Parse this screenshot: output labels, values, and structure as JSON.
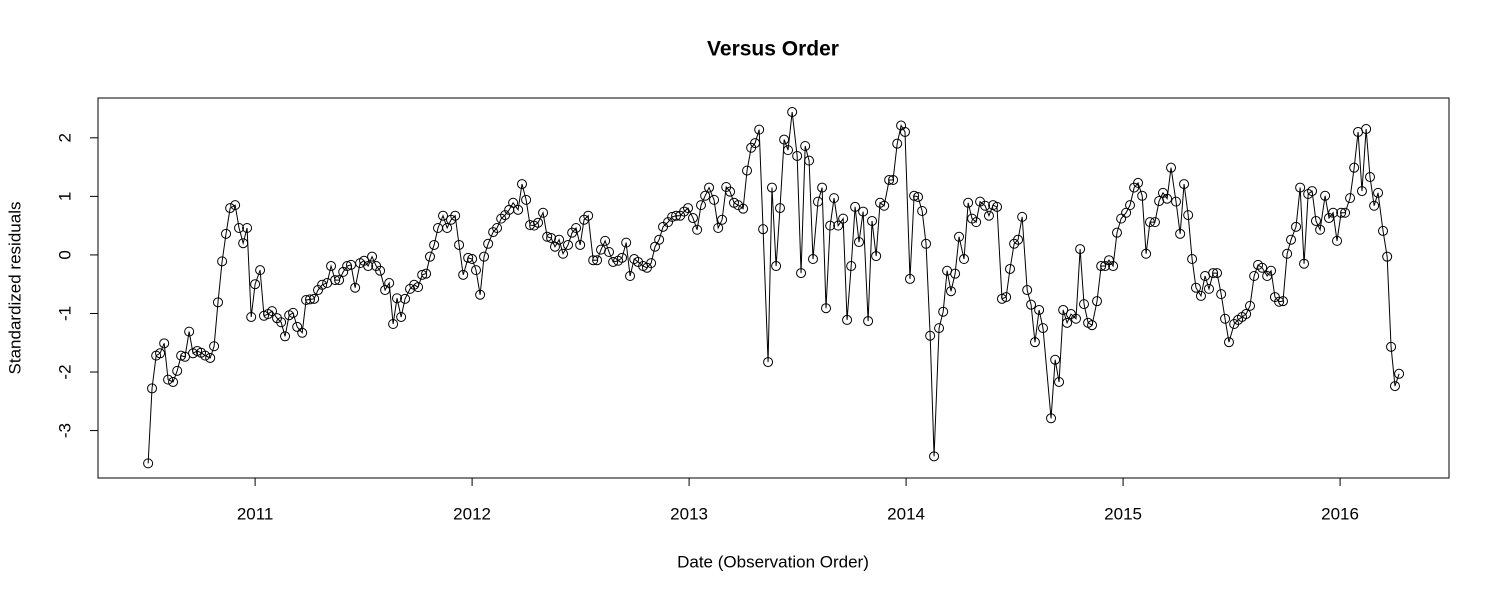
{
  "chart_data": {
    "type": "line",
    "title": "Versus Order",
    "xlabel": "Date (Observation Order)",
    "ylabel": "Standardized residuals",
    "color": "#000000",
    "marker": "open-circle",
    "xlim": [
      2010.276,
      2016.502
    ],
    "ylim": [
      -3.81,
      2.68
    ],
    "xticks": [
      2011,
      2012,
      2013,
      2014,
      2015,
      2016
    ],
    "yticks": [
      -3,
      -2,
      -1,
      0,
      1,
      2
    ],
    "x": [
      2010.507,
      2010.525,
      2010.544,
      2010.562,
      2010.581,
      2010.599,
      2010.622,
      2010.641,
      2010.659,
      2010.677,
      2010.696,
      2010.714,
      2010.733,
      2010.751,
      2010.77,
      2010.793,
      2010.811,
      2010.829,
      2010.848,
      2010.866,
      2010.885,
      2010.908,
      2010.926,
      2010.945,
      2010.963,
      2010.982,
      2011.0,
      2011.023,
      2011.041,
      2011.06,
      2011.078,
      2011.101,
      2011.12,
      2011.138,
      2011.157,
      2011.175,
      2011.194,
      2011.217,
      2011.235,
      2011.253,
      2011.272,
      2011.29,
      2011.309,
      2011.332,
      2011.35,
      2011.369,
      2011.387,
      2011.406,
      2011.424,
      2011.442,
      2011.461,
      2011.484,
      2011.502,
      2011.521,
      2011.539,
      2011.558,
      2011.576,
      2011.599,
      2011.618,
      2011.636,
      2011.654,
      2011.673,
      2011.691,
      2011.714,
      2011.733,
      2011.751,
      2011.77,
      2011.788,
      2011.806,
      2011.825,
      2011.843,
      2011.866,
      2011.885,
      2011.903,
      2011.922,
      2011.94,
      2011.959,
      2011.982,
      2012.0,
      2012.018,
      2012.037,
      2012.055,
      2012.074,
      2012.097,
      2012.115,
      2012.134,
      2012.152,
      2012.171,
      2012.189,
      2012.212,
      2012.23,
      2012.249,
      2012.267,
      2012.286,
      2012.304,
      2012.327,
      2012.346,
      2012.364,
      2012.382,
      2012.401,
      2012.419,
      2012.442,
      2012.461,
      2012.479,
      2012.498,
      2012.516,
      2012.535,
      2012.558,
      2012.576,
      2012.594,
      2012.613,
      2012.631,
      2012.65,
      2012.673,
      2012.691,
      2012.71,
      2012.728,
      2012.747,
      2012.765,
      2012.788,
      2012.806,
      2012.825,
      2012.843,
      2012.862,
      2012.88,
      2012.903,
      2012.922,
      2012.94,
      2012.959,
      2012.977,
      2012.995,
      2013.018,
      2013.037,
      2013.055,
      2013.074,
      2013.092,
      2013.115,
      2013.134,
      2013.152,
      2013.171,
      2013.189,
      2013.207,
      2013.226,
      2013.249,
      2013.267,
      2013.286,
      2013.304,
      2013.323,
      2013.341,
      2013.364,
      2013.382,
      2013.401,
      2013.419,
      2013.438,
      2013.456,
      2013.475,
      2013.498,
      2013.516,
      2013.535,
      2013.553,
      2013.571,
      2013.594,
      2013.613,
      2013.631,
      2013.65,
      2013.668,
      2013.687,
      2013.71,
      2013.728,
      2013.747,
      2013.765,
      2013.783,
      2013.802,
      2013.825,
      2013.843,
      2013.862,
      2013.88,
      2013.899,
      2013.922,
      2013.94,
      2013.959,
      2013.977,
      2013.995,
      2014.018,
      2014.037,
      2014.055,
      2014.074,
      2014.092,
      2014.111,
      2014.129,
      2014.152,
      2014.171,
      2014.189,
      2014.207,
      2014.226,
      2014.244,
      2014.267,
      2014.286,
      2014.304,
      2014.323,
      2014.341,
      2014.364,
      2014.382,
      2014.401,
      2014.419,
      2014.442,
      2014.461,
      2014.479,
      2014.498,
      2014.516,
      2014.535,
      2014.558,
      2014.576,
      2014.594,
      2014.613,
      2014.631,
      2014.668,
      2014.687,
      2014.705,
      2014.724,
      2014.742,
      2014.76,
      2014.783,
      2014.802,
      2014.82,
      2014.839,
      2014.857,
      2014.88,
      2014.899,
      2014.917,
      2014.935,
      2014.954,
      2014.972,
      2014.991,
      2015.014,
      2015.032,
      2015.051,
      2015.069,
      2015.088,
      2015.106,
      2015.124,
      2015.147,
      2015.166,
      2015.184,
      2015.203,
      2015.221,
      2015.244,
      2015.263,
      2015.281,
      2015.3,
      2015.318,
      2015.336,
      2015.359,
      2015.378,
      2015.396,
      2015.415,
      2015.433,
      2015.452,
      2015.47,
      2015.488,
      2015.512,
      2015.53,
      2015.548,
      2015.567,
      2015.585,
      2015.604,
      2015.622,
      2015.641,
      2015.664,
      2015.682,
      2015.7,
      2015.719,
      2015.737,
      2015.756,
      2015.774,
      2015.797,
      2015.816,
      2015.834,
      2015.853,
      2015.871,
      2015.889,
      2015.908,
      2015.931,
      2015.949,
      2015.968,
      2015.986,
      2016.005,
      2016.023,
      2016.046,
      2016.065,
      2016.083,
      2016.101,
      2016.12,
      2016.138,
      2016.157,
      2016.175,
      2016.198,
      2016.217,
      2016.235,
      2016.253,
      2016.272
    ],
    "values": [
      -3.56,
      -2.28,
      -1.72,
      -1.68,
      -1.51,
      -2.13,
      -2.17,
      -1.98,
      -1.72,
      -1.74,
      -1.31,
      -1.68,
      -1.64,
      -1.67,
      -1.72,
      -1.76,
      -1.56,
      -0.81,
      -0.11,
      0.36,
      0.8,
      0.85,
      0.46,
      0.2,
      0.46,
      -1.06,
      -0.5,
      -0.26,
      -1.04,
      -1.01,
      -0.96,
      -1.08,
      -1.15,
      -1.39,
      -1.03,
      -0.99,
      -1.23,
      -1.33,
      -0.77,
      -0.76,
      -0.75,
      -0.6,
      -0.51,
      -0.48,
      -0.19,
      -0.43,
      -0.43,
      -0.29,
      -0.19,
      -0.17,
      -0.56,
      -0.14,
      -0.1,
      -0.19,
      -0.03,
      -0.19,
      -0.27,
      -0.6,
      -0.48,
      -1.18,
      -0.74,
      -1.06,
      -0.75,
      -0.58,
      -0.51,
      -0.55,
      -0.34,
      -0.32,
      -0.03,
      0.17,
      0.46,
      0.67,
      0.46,
      0.6,
      0.67,
      0.17,
      -0.34,
      -0.05,
      -0.07,
      -0.26,
      -0.68,
      -0.03,
      0.19,
      0.39,
      0.46,
      0.62,
      0.68,
      0.77,
      0.89,
      0.77,
      1.21,
      0.94,
      0.51,
      0.5,
      0.55,
      0.72,
      0.31,
      0.29,
      0.14,
      0.26,
      0.02,
      0.17,
      0.38,
      0.46,
      0.17,
      0.6,
      0.67,
      -0.09,
      -0.09,
      0.09,
      0.24,
      0.05,
      -0.12,
      -0.1,
      -0.05,
      0.21,
      -0.36,
      -0.07,
      -0.12,
      -0.19,
      -0.22,
      -0.14,
      0.14,
      0.26,
      0.48,
      0.56,
      0.65,
      0.67,
      0.67,
      0.74,
      0.8,
      0.63,
      0.43,
      0.85,
      1.01,
      1.15,
      0.94,
      0.46,
      0.6,
      1.16,
      1.08,
      0.89,
      0.85,
      0.79,
      1.44,
      1.83,
      1.91,
      2.14,
      0.44,
      -1.83,
      1.15,
      -0.19,
      0.8,
      1.97,
      1.79,
      2.44,
      1.69,
      -0.31,
      1.86,
      1.61,
      -0.07,
      0.91,
      1.15,
      -0.91,
      0.5,
      0.97,
      0.5,
      0.62,
      -1.11,
      -0.19,
      0.82,
      0.22,
      0.74,
      -1.13,
      0.58,
      -0.02,
      0.89,
      0.84,
      1.28,
      1.28,
      1.9,
      2.21,
      2.1,
      -0.41,
      1.01,
      0.99,
      0.75,
      0.19,
      -1.38,
      -3.44,
      -1.25,
      -0.97,
      -0.27,
      -0.62,
      -0.32,
      0.31,
      -0.07,
      0.89,
      0.62,
      0.56,
      0.91,
      0.84,
      0.67,
      0.85,
      0.82,
      -0.75,
      -0.72,
      -0.24,
      0.19,
      0.26,
      0.65,
      -0.6,
      -0.85,
      -1.49,
      -0.94,
      -1.25,
      -2.79,
      -1.79,
      -2.17,
      -0.94,
      -1.16,
      -1.01,
      -1.09,
      0.1,
      -0.84,
      -1.16,
      -1.2,
      -0.79,
      -0.19,
      -0.19,
      -0.09,
      -0.19,
      0.38,
      0.62,
      0.72,
      0.85,
      1.15,
      1.23,
      1.01,
      0.02,
      0.56,
      0.56,
      0.92,
      1.06,
      0.96,
      1.49,
      0.91,
      0.36,
      1.21,
      0.68,
      -0.07,
      -0.56,
      -0.7,
      -0.36,
      -0.58,
      -0.31,
      -0.31,
      -0.67,
      -1.09,
      -1.49,
      -1.18,
      -1.11,
      -1.06,
      -1.01,
      -0.87,
      -0.36,
      -0.17,
      -0.22,
      -0.36,
      -0.27,
      -0.72,
      -0.8,
      -0.79,
      0.02,
      0.26,
      0.48,
      1.15,
      -0.15,
      1.04,
      1.09,
      0.58,
      0.43,
      1.01,
      0.63,
      0.72,
      0.24,
      0.72,
      0.72,
      0.97,
      1.49,
      2.1,
      1.09,
      2.15,
      1.33,
      0.84,
      1.06,
      0.41,
      -0.03,
      -1.57,
      -2.24,
      -2.03
    ]
  }
}
